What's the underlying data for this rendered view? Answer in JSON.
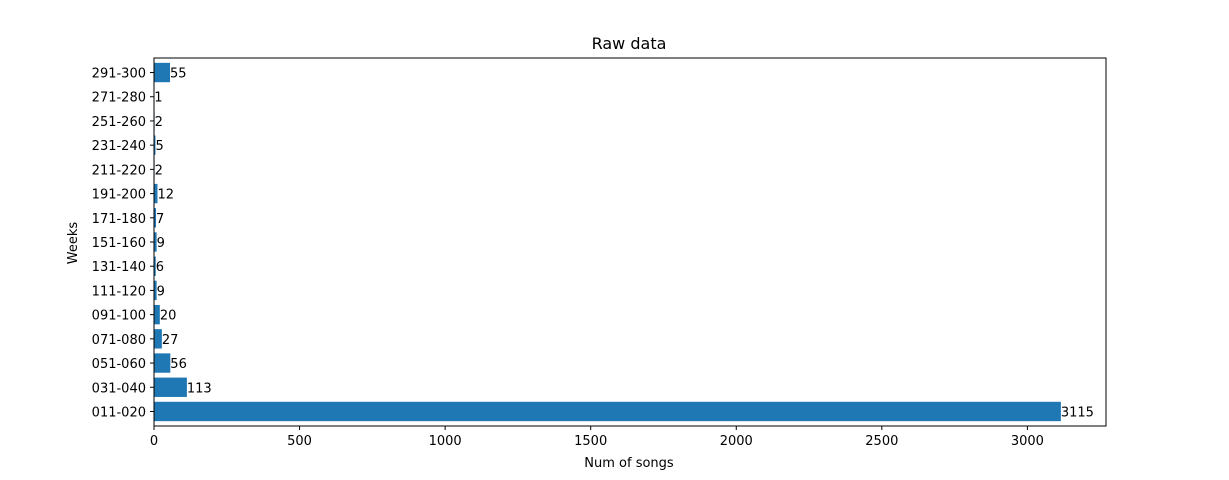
{
  "chart_data": {
    "type": "bar",
    "orientation": "horizontal",
    "title": "Raw data",
    "xlabel": "Num of songs",
    "ylabel": "Weeks",
    "categories": [
      "011-020",
      "031-040",
      "051-060",
      "071-080",
      "091-100",
      "111-120",
      "131-140",
      "151-160",
      "171-180",
      "191-200",
      "211-220",
      "231-240",
      "251-260",
      "271-280",
      "291-300"
    ],
    "values": [
      3115,
      113,
      56,
      27,
      20,
      9,
      6,
      9,
      7,
      12,
      2,
      5,
      2,
      1,
      55
    ],
    "xlim": [
      0,
      3270
    ],
    "xticks": [
      0,
      500,
      1000,
      1500,
      2000,
      2500,
      3000
    ],
    "bar_color": "#1f77b4",
    "grid": false,
    "data_labels": true
  }
}
